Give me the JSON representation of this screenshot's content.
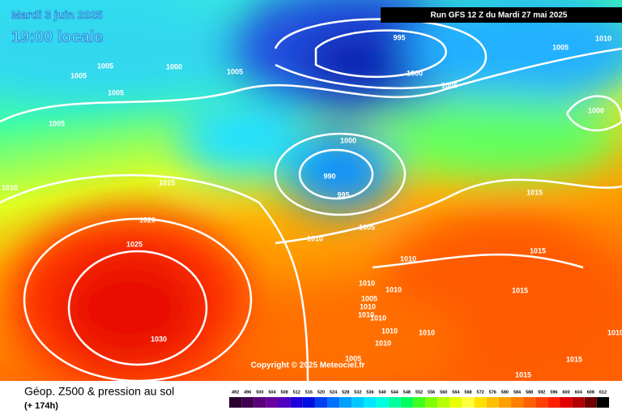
{
  "header": {
    "date": "Mardi 3 juin 2025",
    "time": "19:00 locale",
    "run": "Run GFS 12 Z du Mardi 27 mai 2025"
  },
  "copyright": "Copyright © 2025 Meteociel.fr",
  "footer": {
    "title": "Géop. Z500 & pression au sol",
    "lead": "(+ 174h)"
  },
  "isobar_labels": [
    1005,
    1005,
    1000,
    1005,
    1005,
    1005,
    995,
    1000,
    1005,
    1005,
    1010,
    1000,
    1000,
    990,
    995,
    1015,
    1010,
    1020,
    1025,
    1010,
    1005,
    1015,
    1010,
    1015,
    1010,
    1010,
    1015,
    1005,
    1010,
    1010,
    1010,
    1030,
    1010,
    1010,
    1010,
    1005,
    1015,
    1015,
    1010
  ],
  "scale": [
    492,
    496,
    500,
    504,
    508,
    512,
    516,
    520,
    524,
    528,
    532,
    536,
    540,
    544,
    548,
    552,
    556,
    560,
    564,
    568,
    572,
    576,
    580,
    584,
    588,
    592,
    596,
    600,
    604,
    608,
    612
  ],
  "scale_colors": [
    "#2a0030",
    "#3f0050",
    "#5a0078",
    "#6a00a0",
    "#5000c0",
    "#2000d8",
    "#0010e0",
    "#0040f0",
    "#0070ff",
    "#00a0ff",
    "#00c8ff",
    "#00e8ff",
    "#00ffe0",
    "#00ffa0",
    "#00ff60",
    "#40ff20",
    "#80ff00",
    "#b8ff00",
    "#e8ff00",
    "#ffff40",
    "#ffe000",
    "#ffc000",
    "#ffa000",
    "#ff8000",
    "#ff6000",
    "#ff4000",
    "#ff2000",
    "#e00000",
    "#b00000",
    "#700000",
    "#000000"
  ]
}
